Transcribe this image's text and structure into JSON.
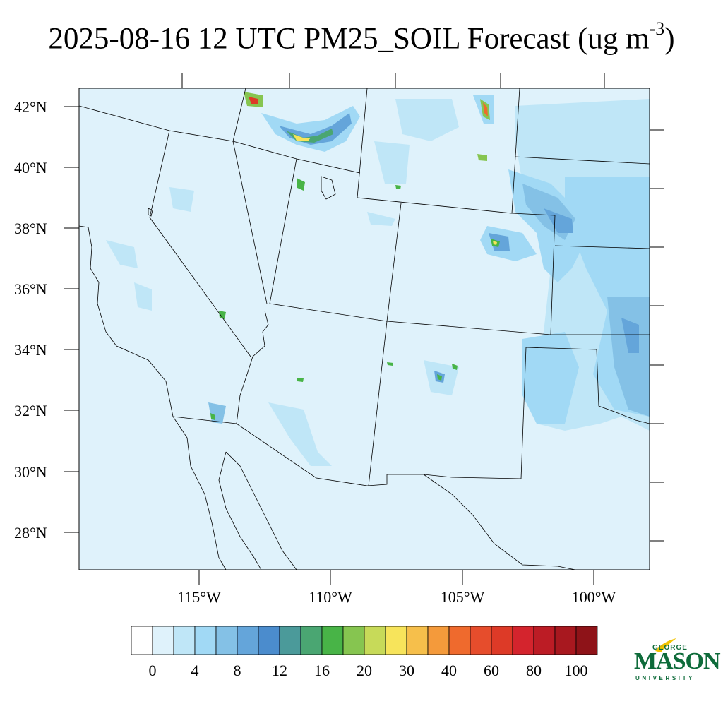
{
  "title": {
    "main": "2025-08-16 12 UTC PM25_SOIL Forecast (ug m",
    "exponent": "-3",
    "close": ")"
  },
  "map": {
    "lat_labels": [
      "42°N",
      "40°N",
      "38°N",
      "36°N",
      "34°N",
      "32°N",
      "30°N",
      "28°N"
    ],
    "lon_labels": [
      "115°W",
      "110°W",
      "105°W",
      "100°W"
    ],
    "background_color": "#dff2fb",
    "boundary_color": "#000000"
  },
  "colorbar": {
    "labels": [
      "0",
      "4",
      "8",
      "12",
      "16",
      "20",
      "30",
      "40",
      "60",
      "80",
      "100"
    ],
    "colors": [
      "#ffffff",
      "#dff2fb",
      "#bfe6f7",
      "#a1d9f5",
      "#84c1e6",
      "#64a5da",
      "#4b8ccd",
      "#4b9a9a",
      "#4aa672",
      "#48b447",
      "#86c550",
      "#c7da59",
      "#f7e45b",
      "#f6bf4b",
      "#f49a3b",
      "#ef6a2d",
      "#e64d2c",
      "#dd3a27",
      "#d4242d",
      "#bc1c25",
      "#a8181f",
      "#8e1318"
    ]
  },
  "logo": {
    "line1": "GEORGE",
    "line2": "MASON",
    "line3": "UNIVERSITY",
    "color": "#0e6b3a",
    "accent": "#f2c300"
  }
}
